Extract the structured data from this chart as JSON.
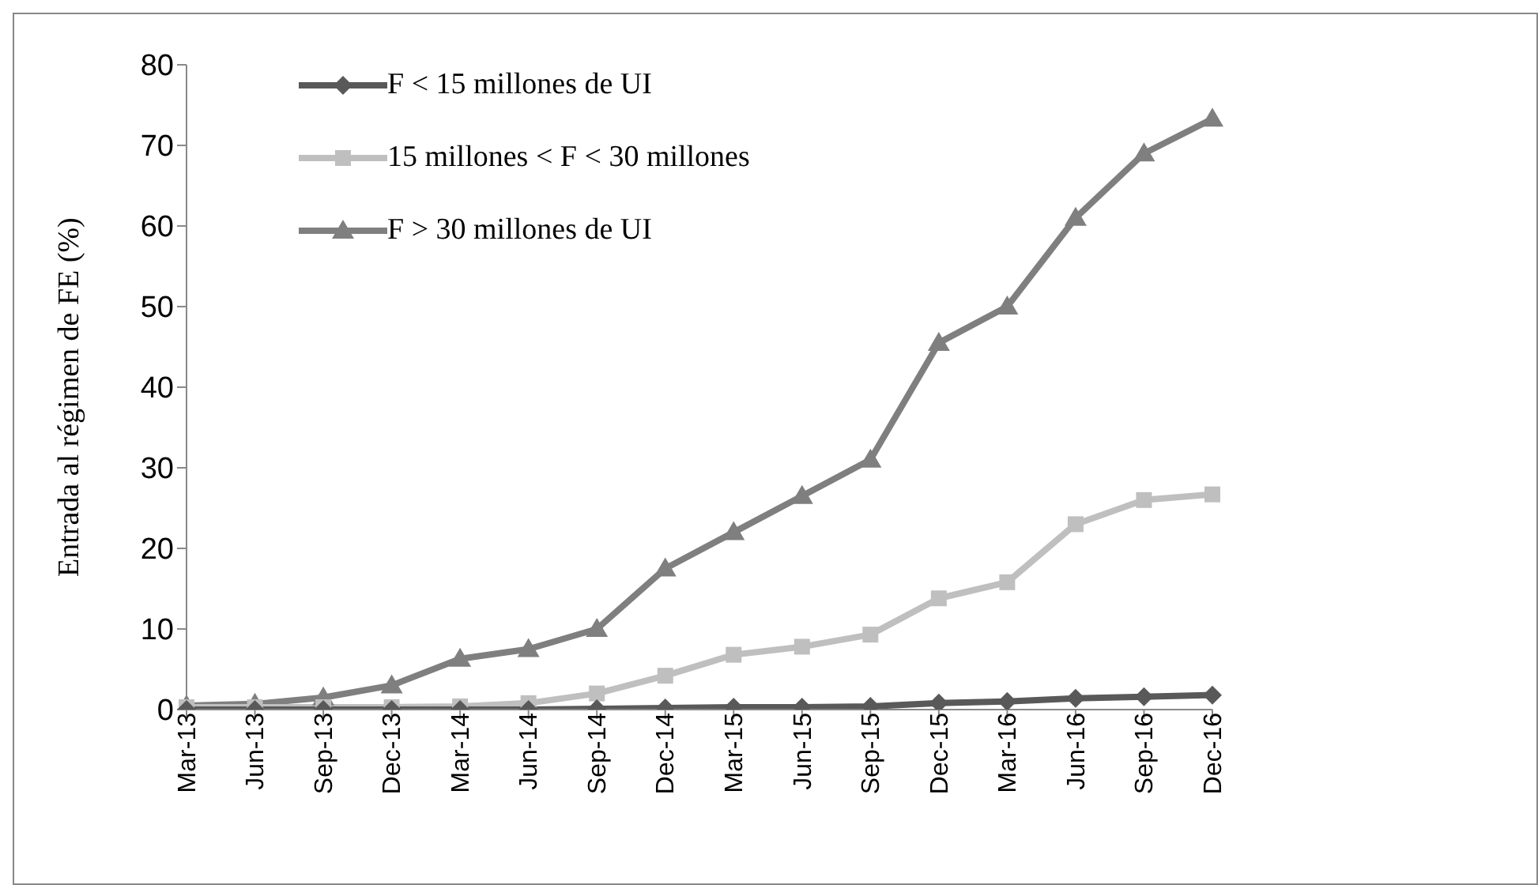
{
  "chart_data": {
    "type": "line",
    "ylabel": "Entrada al régimen de FE (%)",
    "categories": [
      "Mar-13",
      "Jun-13",
      "Sep-13",
      "Dec-13",
      "Mar-14",
      "Jun-14",
      "Sep-14",
      "Dec-14",
      "Mar-15",
      "Jun-15",
      "Sep-15",
      "Dec-15",
      "Mar-16",
      "Jun-16",
      "Sep-16",
      "Dec-16"
    ],
    "series": [
      {
        "name": "F < 15 millones de UI",
        "color": "#595959",
        "marker": "diamond",
        "values": [
          0,
          0,
          0,
          0,
          0,
          0,
          0.1,
          0.2,
          0.3,
          0.3,
          0.4,
          0.8,
          1,
          1.4,
          1.6,
          1.8
        ]
      },
      {
        "name": "15 millones < F < 30 millones",
        "color": "#bfbfbf",
        "marker": "square",
        "values": [
          0.3,
          0.3,
          0.3,
          0.3,
          0.4,
          0.8,
          2,
          4.2,
          6.8,
          7.8,
          9.3,
          13.8,
          15.8,
          23,
          26,
          26.7
        ]
      },
      {
        "name": "F > 30 millones de UI",
        "color": "#7f7f7f",
        "marker": "triangle",
        "values": [
          0.5,
          0.7,
          1.5,
          3,
          6.3,
          7.5,
          10,
          17.5,
          22,
          26.5,
          31,
          45.5,
          50,
          61,
          69,
          73.3
        ]
      }
    ],
    "ylim": [
      0,
      80
    ],
    "yticks": [
      0,
      10,
      20,
      30,
      40,
      50,
      60,
      70,
      80
    ],
    "grid": false,
    "legend": "top left",
    "line_style": "solid"
  }
}
